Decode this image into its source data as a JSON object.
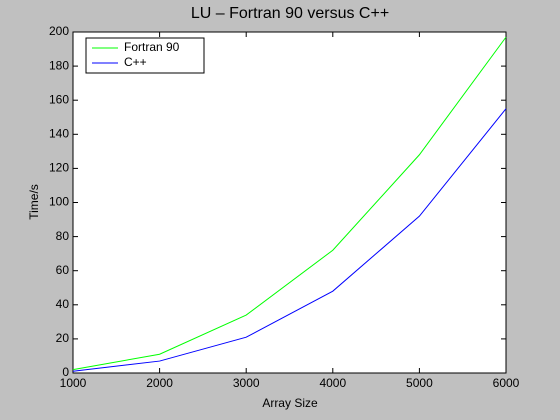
{
  "chart_data": {
    "type": "line",
    "title": "LU – Fortran 90 versus C++",
    "x_label": "Array Size",
    "y_label": "Time/s",
    "x": [
      1000,
      2000,
      3000,
      4000,
      5000,
      6000
    ],
    "series": [
      {
        "name": "Fortran 90",
        "color": "#00ff00",
        "values": [
          2,
          11,
          34,
          72,
          128,
          197
        ]
      },
      {
        "name": "C++",
        "color": "#0000ff",
        "values": [
          1,
          7,
          21,
          48,
          92,
          155
        ]
      }
    ],
    "xlim": [
      1000,
      6000
    ],
    "xticks": [
      1000,
      2000,
      3000,
      4000,
      5000,
      6000
    ],
    "ylim": [
      0,
      200
    ],
    "yticks": [
      0,
      20,
      40,
      60,
      80,
      100,
      120,
      140,
      160,
      180,
      200
    ],
    "grid": false,
    "legend": "upper-left"
  }
}
